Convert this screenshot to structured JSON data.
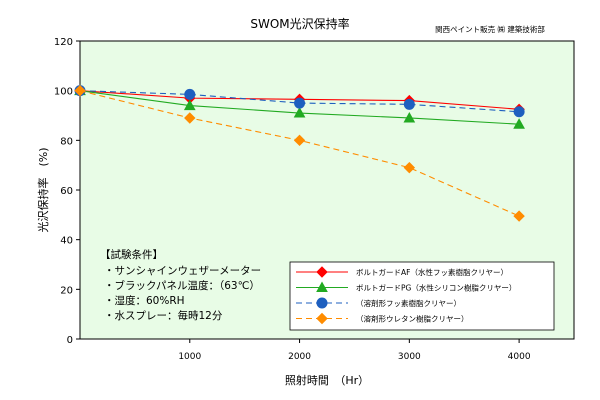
{
  "chart_data": {
    "type": "line",
    "title": "SWOM光沢保持率",
    "source": "関西ペイント販売 ㈱ 建築技術部",
    "xlabel": "照射時間　（Hr）",
    "ylabel": "光沢保持率　(%)",
    "xlim": [
      0,
      4500
    ],
    "ylim": [
      0,
      120
    ],
    "x_ticks": [
      1000,
      2000,
      3000,
      4000
    ],
    "y_ticks": [
      0,
      20,
      40,
      60,
      80,
      100,
      120
    ],
    "grid": false,
    "plot_bg": "#E8FCE6",
    "legend_position": "bottom-right",
    "series": [
      {
        "name": "ボルトガードAF（水性フッ素樹脂クリヤー）",
        "color": "#FF0000",
        "marker": "diamond",
        "dash": "solid",
        "x": [
          0,
          1000,
          2000,
          3000,
          4000
        ],
        "values": [
          100,
          97,
          96.5,
          96,
          92.5
        ]
      },
      {
        "name": "ボルトガードPG（水性シリコン樹脂クリヤー）",
        "color": "#22AA22",
        "marker": "triangle",
        "dash": "solid",
        "x": [
          0,
          1000,
          2000,
          3000,
          4000
        ],
        "values": [
          100,
          94,
          91,
          89,
          86.5
        ]
      },
      {
        "name": "（溶剤形フッ素樹脂クリヤー）",
        "color": "#1E5FBF",
        "marker": "circle",
        "dash": "dash",
        "x": [
          0,
          1000,
          2000,
          3000,
          4000
        ],
        "values": [
          100,
          98.5,
          95,
          94.5,
          91.5
        ]
      },
      {
        "name": "（溶剤形ウレタン樹脂クリヤー）",
        "color": "#FF8C00",
        "marker": "diamond",
        "dash": "dash",
        "x": [
          0,
          1000,
          2000,
          3000,
          4000
        ],
        "values": [
          100,
          89,
          80,
          69,
          49.5
        ]
      }
    ],
    "annotation": {
      "title": "【試験条件】",
      "lines": [
        "・サンシャインウェザーメーター",
        "・ブラックパネル温度：（63℃）",
        "・湿度：60%RH",
        "・水スプレー：毎時12分"
      ]
    }
  }
}
